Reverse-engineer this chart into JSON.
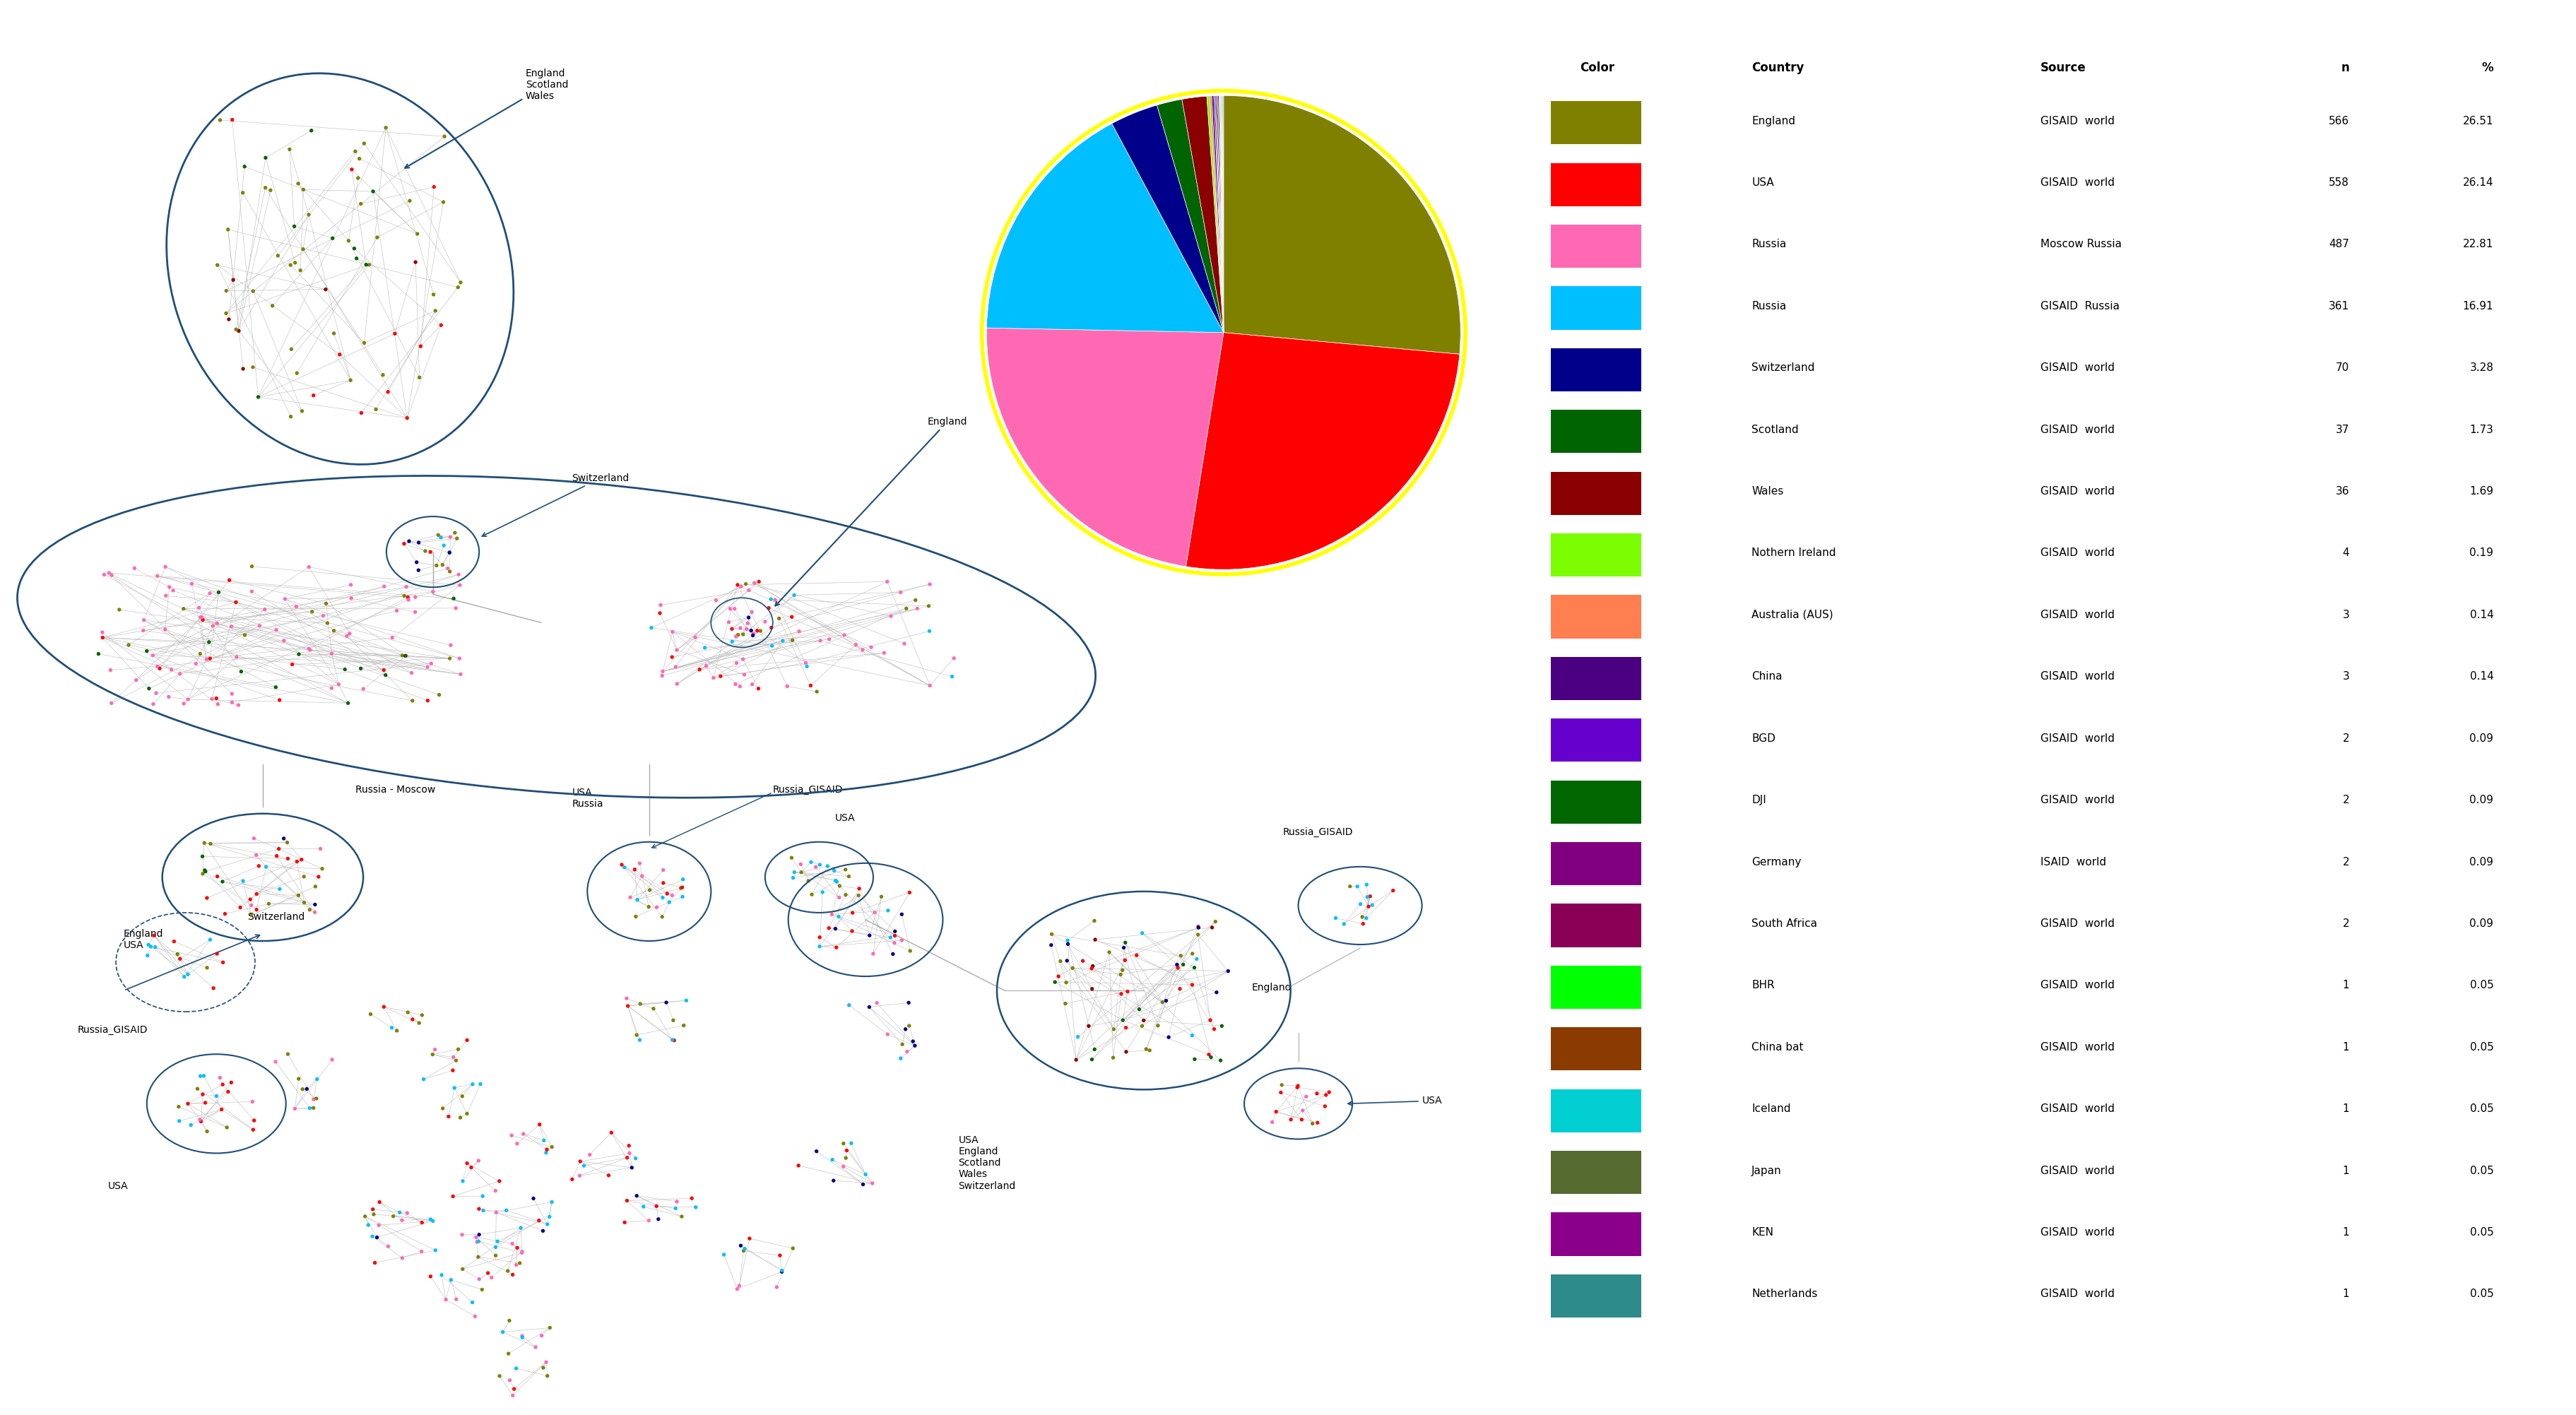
{
  "legend_data": [
    {
      "country": "England",
      "source": "GISAID  world",
      "n": 566,
      "pct": 26.51,
      "color": "#808000"
    },
    {
      "country": "USA",
      "source": "GISAID  world",
      "n": 558,
      "pct": 26.14,
      "color": "#FF0000"
    },
    {
      "country": "Russia",
      "source": "Moscow Russia",
      "n": 487,
      "pct": 22.81,
      "color": "#FF69B4"
    },
    {
      "country": "Russia",
      "source": "GISAID  Russia",
      "n": 361,
      "pct": 16.91,
      "color": "#00BFFF"
    },
    {
      "country": "Switzerland",
      "source": "GISAID  world",
      "n": 70,
      "pct": 3.28,
      "color": "#00008B"
    },
    {
      "country": "Scotland",
      "source": "GISAID  world",
      "n": 37,
      "pct": 1.73,
      "color": "#006400"
    },
    {
      "country": "Wales",
      "source": "GISAID  world",
      "n": 36,
      "pct": 1.69,
      "color": "#8B0000"
    },
    {
      "country": "Nothern Ireland",
      "source": "GISAID  world",
      "n": 4,
      "pct": 0.19,
      "color": "#7CFC00"
    },
    {
      "country": "Australia (AUS)",
      "source": "GISAID  world",
      "n": 3,
      "pct": 0.14,
      "color": "#FF7F50"
    },
    {
      "country": "China",
      "source": "GISAID  world",
      "n": 3,
      "pct": 0.14,
      "color": "#4B0082"
    },
    {
      "country": "BGD",
      "source": "GISAID  world",
      "n": 2,
      "pct": 0.09,
      "color": "#6600CC"
    },
    {
      "country": "DJI",
      "source": "GISAID  world",
      "n": 2,
      "pct": 0.09,
      "color": "#006600"
    },
    {
      "country": "Germany",
      "source": "ISAID  world",
      "n": 2,
      "pct": 0.09,
      "color": "#800080"
    },
    {
      "country": "South Africa",
      "source": "GISAID  world",
      "n": 2,
      "pct": 0.09,
      "color": "#8B0057"
    },
    {
      "country": "BHR",
      "source": "GISAID  world",
      "n": 1,
      "pct": 0.05,
      "color": "#00FF00"
    },
    {
      "country": "China bat",
      "source": "GISAID  world",
      "n": 1,
      "pct": 0.05,
      "color": "#8B3A00"
    },
    {
      "country": "Iceland",
      "source": "GISAID  world",
      "n": 1,
      "pct": 0.05,
      "color": "#00CED1"
    },
    {
      "country": "Japan",
      "source": "GISAID  world",
      "n": 1,
      "pct": 0.05,
      "color": "#556B2F"
    },
    {
      "country": "KEN",
      "source": "GISAID  world",
      "n": 1,
      "pct": 0.05,
      "color": "#8B008B"
    },
    {
      "country": "Netherlands",
      "source": "GISAID  world",
      "n": 1,
      "pct": 0.05,
      "color": "#2E8B8B"
    }
  ],
  "pie_colors": [
    "#808000",
    "#FF0000",
    "#FF69B4",
    "#00BFFF",
    "#00008B",
    "#006400",
    "#8B0000",
    "#7CFC00",
    "#FF7F50",
    "#4B0082",
    "#6600CC",
    "#006600",
    "#800080",
    "#8B0057",
    "#00FF00",
    "#8B3A00",
    "#00CED1",
    "#556B2F",
    "#8B008B",
    "#2E8B8B"
  ],
  "pie_values": [
    26.51,
    26.14,
    22.81,
    16.91,
    3.28,
    1.73,
    1.69,
    0.19,
    0.14,
    0.14,
    0.09,
    0.09,
    0.09,
    0.09,
    0.05,
    0.05,
    0.05,
    0.05,
    0.05,
    0.05
  ],
  "background_color": "#FFFFFF",
  "node_colors": {
    "england": "#808000",
    "usa": "#FF0000",
    "russia_moscow": "#FF69B4",
    "russia_gisaid": "#00BFFF",
    "switzerland": "#00008B",
    "scotland": "#006400",
    "wales": "#8B0000",
    "northern_ireland": "#7CFC00",
    "australia": "#FF7F50"
  }
}
